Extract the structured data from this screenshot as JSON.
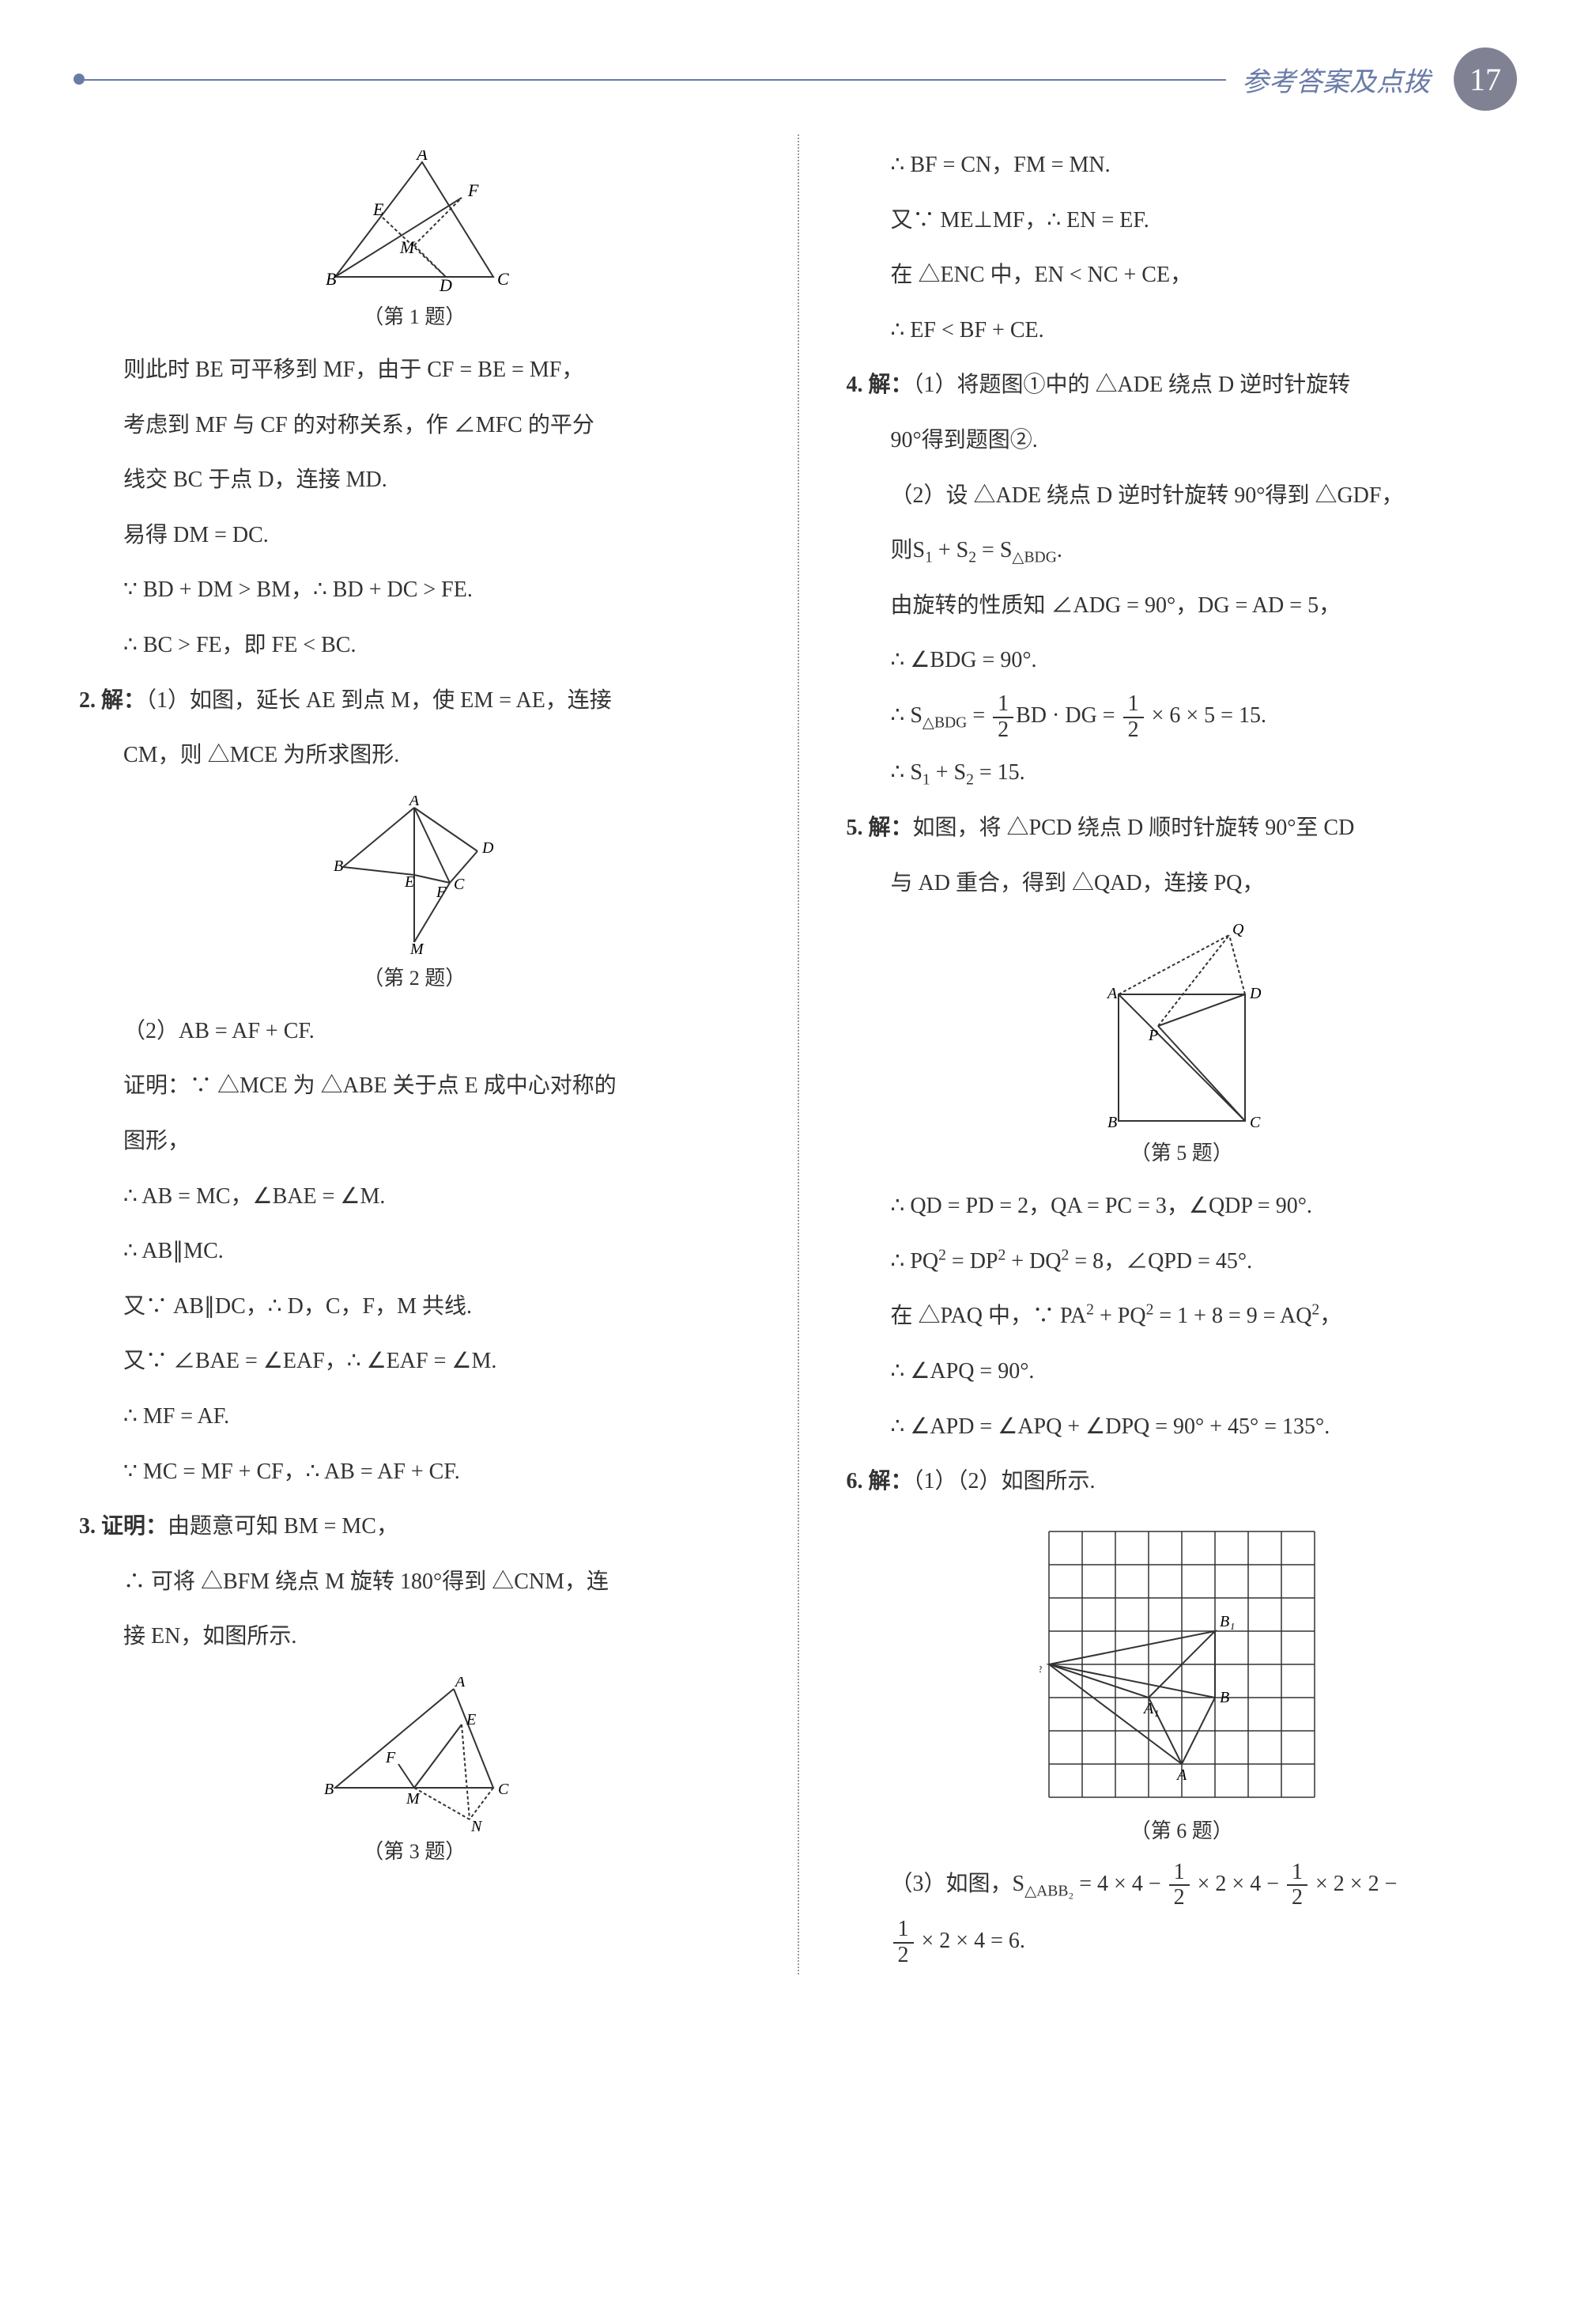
{
  "header": {
    "title": "参考答案及点拨",
    "page_number": "17"
  },
  "left_column": {
    "fig1_caption": "（第 1 题）",
    "fig1_labels": {
      "A": "A",
      "B": "B",
      "C": "C",
      "D": "D",
      "E": "E",
      "F": "F",
      "M": "M"
    },
    "p1": "则此时 BE 可平移到 MF，由于 CF = BE = MF，",
    "p2": "考虑到 MF 与 CF 的对称关系，作 ∠MFC 的平分",
    "p3": "线交 BC 于点 D，连接 MD.",
    "p4": "易得 DM = DC.",
    "p5": "∵ BD + DM > BM，∴ BD + DC > FE.",
    "p6": "∴ BC > FE，即 FE < BC.",
    "q2_label": "2. 解：",
    "q2_text": "（1）如图，延长 AE 到点 M，使 EM = AE，连接",
    "q2_text2": "CM，则 △MCE 为所求图形.",
    "fig2_caption": "（第 2 题）",
    "fig2_labels": {
      "A": "A",
      "B": "B",
      "C": "C",
      "D": "D",
      "E": "E",
      "F": "F",
      "M": "M"
    },
    "q2_p1": "（2）AB = AF + CF.",
    "q2_p2": "证明：∵ △MCE 为 △ABE 关于点 E 成中心对称的",
    "q2_p3": "图形，",
    "q2_p4": "∴ AB = MC，∠BAE = ∠M.",
    "q2_p5": "∴ AB∥MC.",
    "q2_p6": "又∵ AB∥DC，∴ D，C，F，M 共线.",
    "q2_p7": "又∵ ∠BAE = ∠EAF，∴ ∠EAF = ∠M.",
    "q2_p8": "∴ MF = AF.",
    "q2_p9": "∵ MC = MF + CF，∴ AB = AF + CF.",
    "q3_label": "3. 证明：",
    "q3_text": "由题意可知 BM = MC，",
    "q3_p1": "∴ 可将 △BFM 绕点 M 旋转 180°得到 △CNM，连",
    "q3_p2": "接 EN，如图所示.",
    "fig3_caption": "（第 3 题）",
    "fig3_labels": {
      "A": "A",
      "B": "B",
      "C": "C",
      "E": "E",
      "F": "F",
      "M": "M",
      "N": "N"
    }
  },
  "right_column": {
    "p1": "∴ BF = CN，FM = MN.",
    "p2": "又∵ ME⊥MF，∴ EN = EF.",
    "p3": "在 △ENC 中，EN < NC + CE，",
    "p4": "∴ EF < BF + CE.",
    "q4_label": "4. 解：",
    "q4_text": "（1）将题图①中的 △ADE 绕点 D 逆时针旋转",
    "q4_p1": "90°得到题图②.",
    "q4_p2": "（2）设 △ADE 绕点 D 逆时针旋转 90°得到 △GDF，",
    "q4_p3_pre": "则S",
    "q4_p3_s1": "1",
    "q4_p3_mid": " + S",
    "q4_p3_s2": "2",
    "q4_p3_eq": " = S",
    "q4_p3_sub": "△BDG",
    "q4_p3_end": ".",
    "q4_p4": "由旋转的性质知 ∠ADG = 90°，DG = AD = 5，",
    "q4_p5": "∴ ∠BDG = 90°.",
    "q4_p6_pre": "∴ S",
    "q4_p6_sub": "△BDG",
    "q4_p6_eq": " = ",
    "q4_p6_f1n": "1",
    "q4_p6_f1d": "2",
    "q4_p6_mid": "BD · DG = ",
    "q4_p6_f2n": "1",
    "q4_p6_f2d": "2",
    "q4_p6_end": " × 6 × 5 = 15.",
    "q4_p7_pre": "∴ S",
    "q4_p7_s1": "1",
    "q4_p7_mid": " + S",
    "q4_p7_s2": "2",
    "q4_p7_end": " = 15.",
    "q5_label": "5. 解：",
    "q5_text": "如图，将 △PCD 绕点 D 顺时针旋转 90°至 CD",
    "q5_p1": "与 AD 重合，得到 △QAD，连接 PQ，",
    "fig5_caption": "（第 5 题）",
    "fig5_labels": {
      "A": "A",
      "B": "B",
      "C": "C",
      "D": "D",
      "P": "P",
      "Q": "Q"
    },
    "q5_p2": "∴ QD = PD = 2，QA = PC = 3，∠QDP = 90°.",
    "q5_p3_pre": "∴ PQ",
    "q5_p3_sup1": "2",
    "q5_p3_mid1": " = DP",
    "q5_p3_sup2": "2",
    "q5_p3_mid2": " + DQ",
    "q5_p3_sup3": "2",
    "q5_p3_end": " = 8，∠QPD = 45°.",
    "q5_p4_pre": "在 △PAQ 中，∵ PA",
    "q5_p4_sup1": "2",
    "q5_p4_mid1": " + PQ",
    "q5_p4_sup2": "2",
    "q5_p4_mid2": " = 1 + 8 = 9 = AQ",
    "q5_p4_sup3": "2",
    "q5_p4_end": "，",
    "q5_p5": "∴ ∠APQ = 90°.",
    "q5_p6": "∴ ∠APD = ∠APQ + ∠DPQ = 90° + 45° = 135°.",
    "q6_label": "6. 解：",
    "q6_text": "（1）（2）如图所示.",
    "fig6_caption": "（第 6 题）",
    "fig6_labels": {
      "A": "A",
      "A1": "A₁",
      "B": "B",
      "B1": "B₁",
      "B2": "B₂"
    },
    "fig6_grid": {
      "cols": 8,
      "rows": 8,
      "cell": 42,
      "color": "#333"
    },
    "q6_p1_pre": "（3）如图，S",
    "q6_p1_sub": "△ABB₂",
    "q6_p1_mid1": " = 4 × 4 − ",
    "q6_p1_f1n": "1",
    "q6_p1_f1d": "2",
    "q6_p1_mid2": " × 2 × 4 − ",
    "q6_p1_f2n": "1",
    "q6_p1_f2d": "2",
    "q6_p1_mid3": " × 2 × 2 −",
    "q6_p2_f1n": "1",
    "q6_p2_f1d": "2",
    "q6_p2_end": " × 2 × 4 = 6."
  },
  "colors": {
    "text": "#333333",
    "accent": "#6a7ba8",
    "page_badge": "#808294",
    "divider": "#999999"
  },
  "typography": {
    "body_fontsize": 28,
    "caption_fontsize": 26,
    "header_fontsize": 34,
    "page_number_fontsize": 40
  }
}
